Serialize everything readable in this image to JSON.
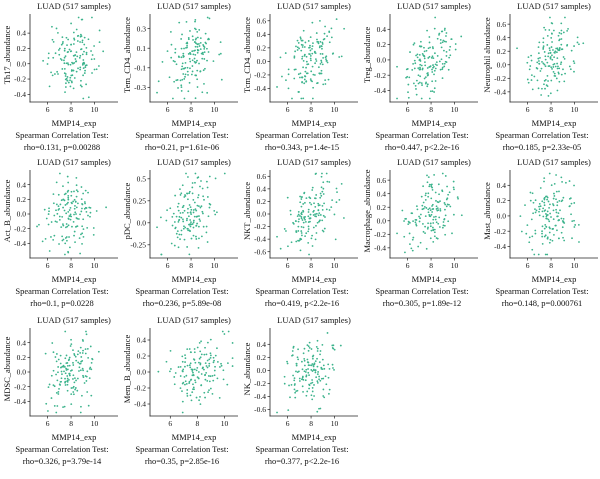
{
  "chart_data": [
    {
      "type": "scatter",
      "title": "LUAD (517 samples)",
      "xlabel": "MMP14_exp",
      "ylabel": "Th17_abundance",
      "xlim": [
        4.5,
        12
      ],
      "ylim": [
        -0.5,
        0.65
      ],
      "xticks": [
        6,
        8,
        10
      ],
      "yticks": [
        -0.4,
        -0.2,
        0.0,
        0.2,
        0.4
      ],
      "rho": 0.131,
      "stat_line1": "Spearman Correlation Test:",
      "stat_line2": "rho=0.131, p=0.00288",
      "color": "#3cb38c"
    },
    {
      "type": "scatter",
      "title": "LUAD (517 samples)",
      "xlabel": "MMP14_exp",
      "ylabel": "Tem_CD4_abundance",
      "xlim": [
        4.5,
        12
      ],
      "ylim": [
        -0.45,
        0.45
      ],
      "xticks": [
        6,
        8,
        10
      ],
      "yticks": [
        -0.3,
        -0.1,
        0.1,
        0.3
      ],
      "rho": 0.21,
      "stat_line1": "Spearman Correlation Test:",
      "stat_line2": "rho=0.21, p=1.61e-06",
      "color": "#3cb38c"
    },
    {
      "type": "scatter",
      "title": "LUAD (517 samples)",
      "xlabel": "MMP14_exp",
      "ylabel": "Tcm_CD4_abundance",
      "xlim": [
        4.5,
        12
      ],
      "ylim": [
        -0.6,
        0.7
      ],
      "xticks": [
        6,
        8,
        10
      ],
      "yticks": [
        -0.4,
        -0.2,
        0.0,
        0.2,
        0.4,
        0.6
      ],
      "rho": 0.343,
      "stat_line1": "Spearman Correlation Test:",
      "stat_line2": "rho=0.343, p=1.4e-15",
      "color": "#3cb38c"
    },
    {
      "type": "scatter",
      "title": "LUAD (517 samples)",
      "xlabel": "MMP14_exp",
      "ylabel": "Treg_abundance",
      "xlim": [
        4.5,
        12
      ],
      "ylim": [
        -0.55,
        0.6
      ],
      "xticks": [
        6,
        8,
        10
      ],
      "yticks": [
        -0.4,
        -0.2,
        0.0,
        0.2,
        0.4
      ],
      "rho": 0.447,
      "stat_line1": "Spearman Correlation Test:",
      "stat_line2": "rho=0.447, p<2.2e-16",
      "color": "#3cb38c"
    },
    {
      "type": "scatter",
      "title": "LUAD (517 samples)",
      "xlabel": "MMP14_exp",
      "ylabel": "Neutrophil abundance",
      "xlim": [
        4.5,
        12
      ],
      "ylim": [
        -0.55,
        0.75
      ],
      "xticks": [
        6,
        8,
        10
      ],
      "yticks": [
        -0.4,
        -0.2,
        0.0,
        0.2,
        0.4,
        0.6
      ],
      "rho": 0.185,
      "stat_line1": "Spearman Correlation Test:",
      "stat_line2": "rho=0.185, p=2.33e-05",
      "color": "#3cb38c"
    },
    {
      "type": "scatter",
      "title": "LUAD (517 samples)",
      "xlabel": "MMP14_exp",
      "ylabel": "Act_B_abundance",
      "xlim": [
        4.5,
        12
      ],
      "ylim": [
        -0.6,
        0.6
      ],
      "xticks": [
        6,
        8,
        10
      ],
      "yticks": [
        -0.4,
        -0.2,
        0.0,
        0.2,
        0.4
      ],
      "rho": 0.1,
      "stat_line1": "Spearman Correlation Test:",
      "stat_line2": "rho=0.1, p=0.0228",
      "color": "#3cb38c"
    },
    {
      "type": "scatter",
      "title": "LUAD (517 samples)",
      "xlabel": "MMP14_exp",
      "ylabel": "pDC_abundance",
      "xlim": [
        4.5,
        12
      ],
      "ylim": [
        -0.4,
        0.6
      ],
      "xticks": [
        6,
        8,
        10
      ],
      "yticks": [
        -0.25,
        0.0,
        0.25,
        0.5
      ],
      "rho": 0.236,
      "stat_line1": "Spearman Correlation Test:",
      "stat_line2": "rho=0.236, p=5.89e-08",
      "color": "#3cb38c"
    },
    {
      "type": "scatter",
      "title": "LUAD (517 samples)",
      "xlabel": "MMP14_exp",
      "ylabel": "NKT_abundance",
      "xlim": [
        4.5,
        12
      ],
      "ylim": [
        -0.7,
        0.7
      ],
      "xticks": [
        6,
        8,
        10
      ],
      "yticks": [
        -0.6,
        -0.4,
        -0.2,
        0.0,
        0.2,
        0.4,
        0.6
      ],
      "rho": 0.419,
      "stat_line1": "Spearman Correlation Test:",
      "stat_line2": "rho=0.419, p<2.2e-16",
      "color": "#3cb38c"
    },
    {
      "type": "scatter",
      "title": "LUAD (517 samples)",
      "xlabel": "MMP14_exp",
      "ylabel": "Macrophage_abundance",
      "xlim": [
        4.5,
        12
      ],
      "ylim": [
        -0.55,
        0.75
      ],
      "xticks": [
        6,
        8,
        10
      ],
      "yticks": [
        -0.4,
        -0.2,
        0.0,
        0.2,
        0.4,
        0.6
      ],
      "rho": 0.305,
      "stat_line1": "Spearman Correlation Test:",
      "stat_line2": "rho=0.305, p=1.89e-12",
      "color": "#3cb38c"
    },
    {
      "type": "scatter",
      "title": "LUAD (517 samples)",
      "xlabel": "MMP14_exp",
      "ylabel": "Mast_abundance",
      "xlim": [
        4.5,
        12
      ],
      "ylim": [
        -0.55,
        0.6
      ],
      "xticks": [
        6,
        8,
        10
      ],
      "yticks": [
        -0.4,
        -0.2,
        0.0,
        0.2,
        0.4
      ],
      "rho": 0.148,
      "stat_line1": "Spearman Correlation Test:",
      "stat_line2": "rho=0.148, p=0.000761",
      "color": "#3cb38c"
    },
    {
      "type": "scatter",
      "title": "LUAD (517 samples)",
      "xlabel": "MMP14_exp",
      "ylabel": "MDSC_abundance",
      "xlim": [
        4.5,
        12
      ],
      "ylim": [
        -0.6,
        0.6
      ],
      "xticks": [
        6,
        8,
        10
      ],
      "yticks": [
        -0.4,
        -0.2,
        0.0,
        0.2,
        0.4
      ],
      "rho": 0.326,
      "stat_line1": "Spearman Correlation Test:",
      "stat_line2": "rho=0.326, p=3.79e-14",
      "color": "#3cb38c"
    },
    {
      "type": "scatter",
      "title": "LUAD (517 samples)",
      "xlabel": "MMP14_exp",
      "ylabel": "Mem_B_abundance",
      "xlim": [
        4.5,
        11
      ],
      "ylim": [
        -0.55,
        0.55
      ],
      "xticks": [
        6,
        8,
        10
      ],
      "yticks": [
        -0.4,
        -0.2,
        0.0,
        0.2,
        0.4
      ],
      "rho": 0.35,
      "stat_line1": "Spearman Correlation Test:",
      "stat_line2": "rho=0.35, p=2.85e-16",
      "color": "#3cb38c"
    },
    {
      "type": "scatter",
      "title": "LUAD (517 samples)",
      "xlabel": "MMP14_exp",
      "ylabel": "NK_abundance",
      "xlim": [
        4.5,
        12
      ],
      "ylim": [
        -0.7,
        0.65
      ],
      "xticks": [
        6,
        8,
        10
      ],
      "yticks": [
        -0.6,
        -0.4,
        -0.2,
        0.0,
        0.2,
        0.4
      ],
      "rho": 0.377,
      "stat_line1": "Spearman Correlation Test:",
      "stat_line2": "rho=0.377, p<2.2e-16",
      "color": "#3cb38c"
    }
  ]
}
